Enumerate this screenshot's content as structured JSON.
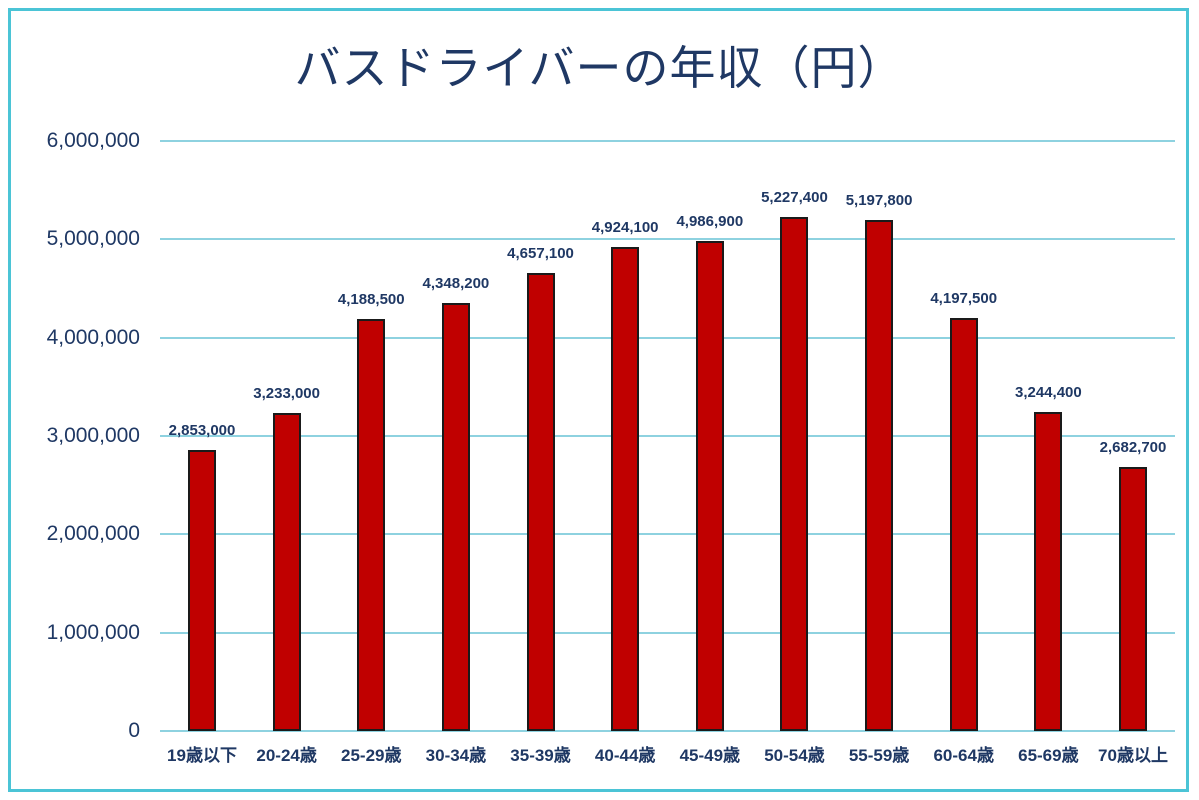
{
  "chart_data": {
    "type": "bar",
    "title": "バスドライバーの年収（円）",
    "categories": [
      "19歳以下",
      "20-24歳",
      "25-29歳",
      "30-34歳",
      "35-39歳",
      "40-44歳",
      "45-49歳",
      "50-54歳",
      "55-59歳",
      "60-64歳",
      "65-69歳",
      "70歳以上"
    ],
    "values": [
      2853000,
      3233000,
      4188500,
      4348200,
      4657100,
      4924100,
      4986900,
      5227400,
      5197800,
      4197500,
      3244400,
      2682700
    ],
    "value_labels": [
      "2,853,000",
      "3,233,000",
      "4,188,500",
      "4,348,200",
      "4,657,100",
      "4,924,100",
      "4,986,900",
      "5,227,400",
      "5,197,800",
      "4,197,500",
      "3,244,400",
      "2,682,700"
    ],
    "xlabel": "",
    "ylabel": "",
    "ylim": [
      0,
      6000000
    ],
    "y_tick_step": 1000000,
    "y_tick_labels": [
      "0",
      "1,000,000",
      "2,000,000",
      "3,000,000",
      "4,000,000",
      "5,000,000",
      "6,000,000"
    ],
    "grid": true,
    "legend": false,
    "colors": {
      "bar_fill": "#C00000",
      "bar_border": "#1a1a1a",
      "grid_line": "#8ED2E0",
      "axis_line": "#8ED2E0",
      "text": "#1F3864",
      "chart_border": "#4BC4D6",
      "background": "#FFFFFF"
    }
  }
}
